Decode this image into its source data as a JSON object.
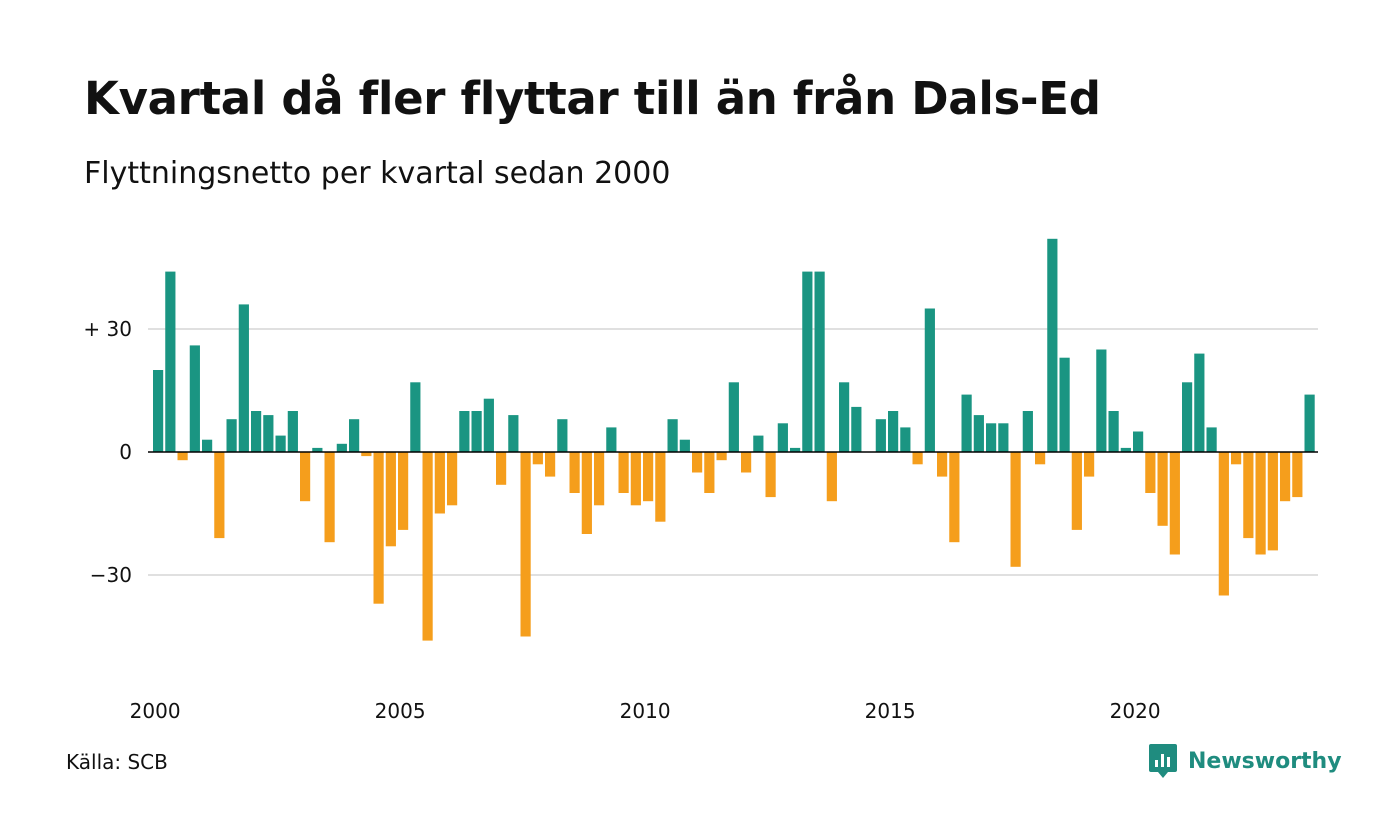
{
  "title": "Kvartal då fler flyttar till än från Dals-Ed",
  "subtitle": "Flyttningsnetto per kvartal sedan 2000",
  "source": "Källa: SCB",
  "brand": "Newsworthy",
  "colors": {
    "positive": "#1a9582",
    "negative": "#f59e1c",
    "grid": "#e0e0e0",
    "zero": "#000000",
    "brand": "#1f8c7f"
  },
  "chart_data": {
    "type": "bar",
    "x_start": "2000Q1",
    "xtick_labels": [
      "2000",
      "2005",
      "2010",
      "2015",
      "2020"
    ],
    "yticks": [
      30,
      0,
      -30
    ],
    "ytick_labels": [
      "+ 30",
      "0",
      "−30"
    ],
    "ylim": [
      -60,
      60
    ],
    "grid": true,
    "values": [
      20,
      44,
      -2,
      26,
      3,
      -21,
      8,
      36,
      10,
      9,
      4,
      10,
      -12,
      1,
      -22,
      2,
      8,
      -1,
      -37,
      -23,
      -19,
      17,
      -46,
      -15,
      -13,
      10,
      10,
      13,
      -8,
      9,
      -45,
      -3,
      -6,
      8,
      -10,
      -20,
      -13,
      6,
      -10,
      -13,
      -12,
      -17,
      8,
      3,
      -5,
      -10,
      -2,
      17,
      -5,
      4,
      -11,
      7,
      1,
      44,
      44,
      -12,
      17,
      11,
      0,
      8,
      10,
      6,
      -3,
      35,
      -6,
      -22,
      14,
      9,
      7,
      7,
      -28,
      10,
      -3,
      52,
      23,
      -19,
      -6,
      25,
      10,
      1,
      5,
      -10,
      -18,
      -25,
      17,
      24,
      6,
      -35,
      -3,
      -21,
      -25,
      -24,
      -12,
      -11,
      14
    ]
  }
}
